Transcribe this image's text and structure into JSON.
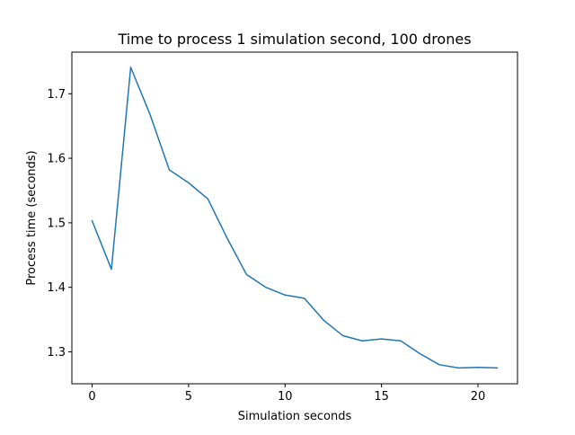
{
  "chart_data": {
    "type": "line",
    "title": "Time to process 1 simulation second, 100 drones",
    "xlabel": "Simulation seconds",
    "ylabel": "Process time (seconds)",
    "xlim": [
      -1.05,
      22.05
    ],
    "ylim": [
      1.2505,
      1.7645
    ],
    "xticks": [
      0,
      5,
      10,
      15,
      20
    ],
    "yticks": [
      1.3,
      1.4,
      1.5,
      1.6,
      1.7
    ],
    "grid": false,
    "series": [
      {
        "color": "#1f77b4",
        "x": [
          0,
          1,
          2,
          3,
          4,
          5,
          6,
          7,
          8,
          9,
          10,
          11,
          12,
          13,
          14,
          15,
          16,
          17,
          18,
          19,
          20,
          21
        ],
        "values": [
          1.503,
          1.428,
          1.741,
          1.668,
          1.582,
          1.562,
          1.537,
          1.476,
          1.42,
          1.4,
          1.388,
          1.383,
          1.349,
          1.325,
          1.317,
          1.32,
          1.317,
          1.297,
          1.28,
          1.275,
          1.276,
          1.275
        ]
      }
    ]
  }
}
